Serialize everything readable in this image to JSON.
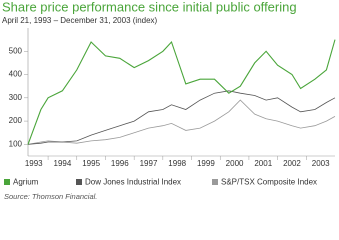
{
  "chart_data": {
    "type": "line",
    "title": "Share price performance since initial public offering",
    "subtitle": "April 21, 1993 – December 31, 2003 (index)",
    "source": "Source: Thomson Financial.",
    "x": [
      1993.3,
      1993.75,
      1994.0,
      1994.5,
      1995.0,
      1995.5,
      1996.0,
      1996.5,
      1997.0,
      1997.5,
      1998.0,
      1998.3,
      1998.8,
      1999.3,
      1999.8,
      2000.3,
      2000.7,
      2001.2,
      2001.6,
      2002.0,
      2002.5,
      2002.8,
      2003.3,
      2003.7,
      2004.0
    ],
    "series": [
      {
        "name": "Agrium",
        "color": "#4aa53a",
        "values": [
          100,
          250,
          300,
          330,
          420,
          540,
          480,
          470,
          430,
          460,
          500,
          540,
          360,
          380,
          380,
          320,
          350,
          450,
          500,
          440,
          400,
          340,
          380,
          420,
          550
        ]
      },
      {
        "name": "Dow Jones Industrial Index",
        "color": "#555555",
        "values": [
          100,
          105,
          110,
          110,
          115,
          140,
          160,
          180,
          200,
          240,
          250,
          270,
          250,
          290,
          320,
          330,
          320,
          310,
          290,
          300,
          260,
          240,
          250,
          280,
          300
        ]
      },
      {
        "name": "S&P/TSX Composite Index",
        "color": "#9a9a9a",
        "values": [
          100,
          110,
          115,
          110,
          105,
          115,
          120,
          130,
          150,
          170,
          180,
          190,
          160,
          170,
          200,
          240,
          290,
          230,
          210,
          200,
          180,
          170,
          180,
          200,
          220
        ]
      }
    ],
    "xlim": [
      1993.3,
      2004.0
    ],
    "xticks": [
      1993,
      1994,
      1995,
      1996,
      1997,
      1998,
      1999,
      2000,
      2001,
      2002,
      2003
    ],
    "ylim": [
      50,
      600
    ],
    "yticks": [
      100,
      200,
      300,
      400,
      500
    ]
  }
}
